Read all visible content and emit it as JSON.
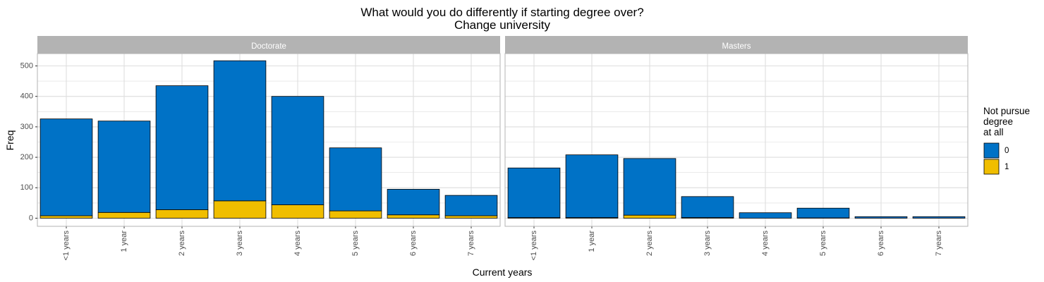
{
  "chart_data": {
    "type": "bar",
    "stacked": true,
    "title": "What would you do differently if starting degree over?",
    "subtitle": "Change university",
    "xlabel": "Current years",
    "ylabel": "Freq",
    "ylim": [
      0,
      525
    ],
    "yticks": [
      0,
      100,
      200,
      300,
      400,
      500
    ],
    "grid": true,
    "categories": [
      "<1 years",
      "1 year",
      "2 years",
      "3 years",
      "4 years",
      "5 years",
      "6 years",
      "7 years"
    ],
    "legend": {
      "title_lines": [
        "Not pursue",
        "degree",
        "at all"
      ],
      "position": "right",
      "entries": [
        {
          "label": "0",
          "color": "#0072C6"
        },
        {
          "label": "1",
          "color": "#F0BE00"
        }
      ]
    },
    "colors": {
      "series_0": "#0072C6",
      "series_1": "#F0BE00",
      "strip_background": "#B3B3B3",
      "grid": "#DEDEDE"
    },
    "facets": [
      {
        "name": "Doctorate",
        "series": [
          {
            "name": "0",
            "values": [
              318,
              300,
              407,
              460,
              356,
              207,
              84,
              67
            ]
          },
          {
            "name": "1",
            "values": [
              8,
              19,
              28,
              57,
              44,
              24,
              11,
              8
            ]
          }
        ]
      },
      {
        "name": "Masters",
        "series": [
          {
            "name": "0",
            "values": [
              163,
              206,
              186,
              69,
              18,
              32,
              5,
              5
            ]
          },
          {
            "name": "1",
            "values": [
              2,
              2,
              10,
              2,
              0,
              1,
              0,
              0
            ]
          }
        ]
      }
    ]
  }
}
